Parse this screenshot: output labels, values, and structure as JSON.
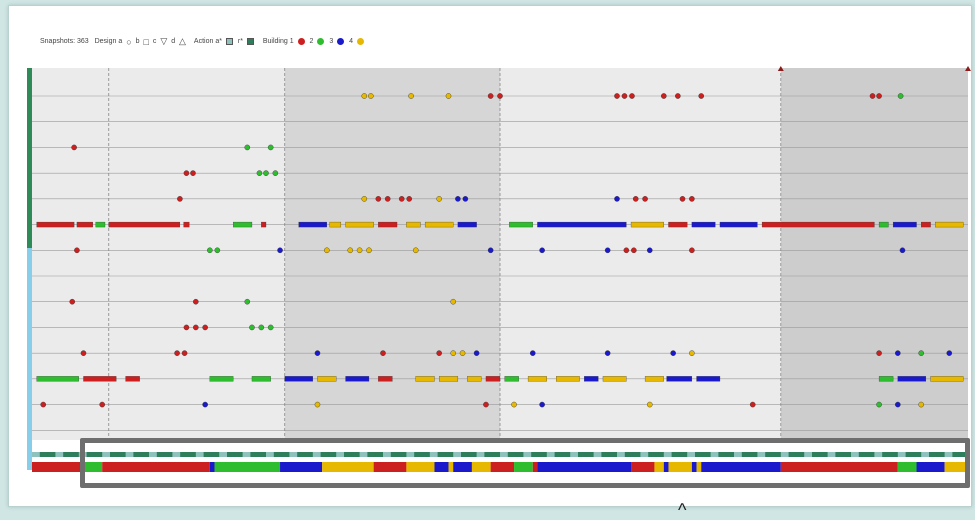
{
  "legend": {
    "snapshots_label": "Snapshots: 363",
    "design_label": "Design",
    "design_items": [
      "a",
      "b",
      "c",
      "d"
    ],
    "design_shapes": [
      "○",
      "□",
      "▽",
      "△"
    ],
    "action_label": "Action",
    "action_items": [
      "a*",
      "r*"
    ],
    "action_colors": [
      "#8fc1bd",
      "#2e7d5b"
    ],
    "building_label": "Building",
    "building_items": [
      "1",
      "2",
      "3",
      "4"
    ],
    "building_colors": [
      "#cc1f1f",
      "#2ebd2e",
      "#1a1acc",
      "#e6b800"
    ]
  },
  "colors": {
    "bg_white": "#ffffff",
    "band_light": "#ebebeb",
    "band_mid": "#d6d6d6",
    "band_dark": "#cdcdcd",
    "row_line": "#9a9a9a",
    "left_green": "#2e8b57",
    "left_blue": "#87ceeb"
  },
  "chart_data": {
    "type": "scatter",
    "title": "",
    "xlabel": "",
    "ylabel": "",
    "xlim": [
      0,
      100
    ],
    "rows": 14,
    "markers": [
      {
        "row": 0,
        "x": [
          35.5,
          36.2
        ],
        "c": "4"
      },
      {
        "row": 0,
        "x": [
          40.5
        ],
        "c": "4"
      },
      {
        "row": 0,
        "x": [
          44.5
        ],
        "c": "4"
      },
      {
        "row": 0,
        "x": [
          49.0,
          50.0
        ],
        "c": "1"
      },
      {
        "row": 0,
        "x": [
          62.5,
          63.3,
          64.1
        ],
        "c": "1"
      },
      {
        "row": 0,
        "x": [
          67.5,
          69.0,
          71.5
        ],
        "c": "1"
      },
      {
        "row": 0,
        "x": [
          89.8,
          90.5
        ],
        "c": "1"
      },
      {
        "row": 0,
        "x": [
          92.8
        ],
        "c": "2"
      },
      {
        "row": 2,
        "x": [
          4.5
        ],
        "c": "1"
      },
      {
        "row": 2,
        "x": [
          23.0
        ],
        "c": "2"
      },
      {
        "row": 2,
        "x": [
          25.5
        ],
        "c": "2"
      },
      {
        "row": 3,
        "x": [
          16.5,
          17.2
        ],
        "c": "1"
      },
      {
        "row": 3,
        "x": [
          24.3,
          25.0
        ],
        "c": "2"
      },
      {
        "row": 3,
        "x": [
          26.0
        ],
        "c": "2"
      },
      {
        "row": 4,
        "x": [
          15.8
        ],
        "c": "1"
      },
      {
        "row": 4,
        "x": [
          35.5
        ],
        "c": "4"
      },
      {
        "row": 4,
        "x": [
          37.0,
          38.0
        ],
        "c": "1"
      },
      {
        "row": 4,
        "x": [
          39.5,
          40.3
        ],
        "c": "1"
      },
      {
        "row": 4,
        "x": [
          43.5
        ],
        "c": "4"
      },
      {
        "row": 4,
        "x": [
          45.5,
          46.3
        ],
        "c": "3"
      },
      {
        "row": 4,
        "x": [
          62.5
        ],
        "c": "3"
      },
      {
        "row": 4,
        "x": [
          64.5,
          65.5
        ],
        "c": "1"
      },
      {
        "row": 4,
        "x": [
          69.5,
          70.5
        ],
        "c": "1"
      },
      {
        "row": 6,
        "x": [
          4.8
        ],
        "c": "1"
      },
      {
        "row": 6,
        "x": [
          19.0,
          19.8
        ],
        "c": "2"
      },
      {
        "row": 6,
        "x": [
          26.5
        ],
        "c": "3"
      },
      {
        "row": 6,
        "x": [
          31.5
        ],
        "c": "4"
      },
      {
        "row": 6,
        "x": [
          34.0,
          35.0,
          36.0
        ],
        "c": "4"
      },
      {
        "row": 6,
        "x": [
          41.0
        ],
        "c": "4"
      },
      {
        "row": 6,
        "x": [
          49.0
        ],
        "c": "3"
      },
      {
        "row": 6,
        "x": [
          54.5
        ],
        "c": "3"
      },
      {
        "row": 6,
        "x": [
          61.5
        ],
        "c": "3"
      },
      {
        "row": 6,
        "x": [
          63.5,
          64.3
        ],
        "c": "1"
      },
      {
        "row": 6,
        "x": [
          66.0
        ],
        "c": "3"
      },
      {
        "row": 6,
        "x": [
          70.5
        ],
        "c": "1"
      },
      {
        "row": 6,
        "x": [
          93.0
        ],
        "c": "3"
      },
      {
        "row": 8,
        "x": [
          4.3
        ],
        "c": "1"
      },
      {
        "row": 8,
        "x": [
          17.5
        ],
        "c": "1"
      },
      {
        "row": 8,
        "x": [
          23.0
        ],
        "c": "2"
      },
      {
        "row": 8,
        "x": [
          45.0
        ],
        "c": "4"
      },
      {
        "row": 9,
        "x": [
          16.5,
          17.5,
          18.5
        ],
        "c": "1"
      },
      {
        "row": 9,
        "x": [
          23.5,
          24.5,
          25.5
        ],
        "c": "2"
      },
      {
        "row": 10,
        "x": [
          5.5
        ],
        "c": "1"
      },
      {
        "row": 10,
        "x": [
          15.5,
          16.3
        ],
        "c": "1"
      },
      {
        "row": 10,
        "x": [
          30.5
        ],
        "c": "3"
      },
      {
        "row": 10,
        "x": [
          37.5
        ],
        "c": "1"
      },
      {
        "row": 10,
        "x": [
          43.5
        ],
        "c": "1"
      },
      {
        "row": 10,
        "x": [
          45.0,
          46.0
        ],
        "c": "4"
      },
      {
        "row": 10,
        "x": [
          47.5
        ],
        "c": "3"
      },
      {
        "row": 10,
        "x": [
          53.5
        ],
        "c": "3"
      },
      {
        "row": 10,
        "x": [
          61.5
        ],
        "c": "3"
      },
      {
        "row": 10,
        "x": [
          68.5
        ],
        "c": "3"
      },
      {
        "row": 10,
        "x": [
          70.5
        ],
        "c": "4"
      },
      {
        "row": 10,
        "x": [
          90.5
        ],
        "c": "1"
      },
      {
        "row": 10,
        "x": [
          92.5
        ],
        "c": "3"
      },
      {
        "row": 10,
        "x": [
          95.0
        ],
        "c": "2"
      },
      {
        "row": 10,
        "x": [
          98.0
        ],
        "c": "3"
      },
      {
        "row": 12,
        "x": [
          1.2
        ],
        "c": "1"
      },
      {
        "row": 12,
        "x": [
          7.5
        ],
        "c": "1"
      },
      {
        "row": 12,
        "x": [
          18.5
        ],
        "c": "3"
      },
      {
        "row": 12,
        "x": [
          30.5
        ],
        "c": "4"
      },
      {
        "row": 12,
        "x": [
          48.5
        ],
        "c": "1"
      },
      {
        "row": 12,
        "x": [
          51.5
        ],
        "c": "4"
      },
      {
        "row": 12,
        "x": [
          54.5
        ],
        "c": "3"
      },
      {
        "row": 12,
        "x": [
          66.0
        ],
        "c": "4"
      },
      {
        "row": 12,
        "x": [
          77.0
        ],
        "c": "1"
      },
      {
        "row": 12,
        "x": [
          90.5
        ],
        "c": "2"
      },
      {
        "row": 12,
        "x": [
          92.5
        ],
        "c": "3"
      },
      {
        "row": 12,
        "x": [
          95.0
        ],
        "c": "4"
      }
    ],
    "stripes": [
      {
        "row": 5,
        "segments": [
          {
            "from": 0.5,
            "to": 4.5,
            "c": "1"
          },
          {
            "from": 4.8,
            "to": 6.5,
            "c": "1"
          },
          {
            "from": 6.8,
            "to": 7.8,
            "c": "2"
          },
          {
            "from": 8.2,
            "to": 15.8,
            "c": "1"
          },
          {
            "from": 16.2,
            "to": 16.8,
            "c": "1"
          },
          {
            "from": 21.5,
            "to": 23.5,
            "c": "2"
          },
          {
            "from": 24.5,
            "to": 25.0,
            "c": "1"
          },
          {
            "from": 28.5,
            "to": 31.5,
            "c": "3"
          },
          {
            "from": 31.8,
            "to": 33.0,
            "c": "4"
          },
          {
            "from": 33.5,
            "to": 36.5,
            "c": "4"
          },
          {
            "from": 37.0,
            "to": 39.0,
            "c": "1"
          },
          {
            "from": 40.0,
            "to": 41.5,
            "c": "4"
          },
          {
            "from": 42.0,
            "to": 45.0,
            "c": "4"
          },
          {
            "from": 45.5,
            "to": 47.5,
            "c": "3"
          },
          {
            "from": 51.0,
            "to": 53.5,
            "c": "2"
          },
          {
            "from": 54.0,
            "to": 63.5,
            "c": "3"
          },
          {
            "from": 64.0,
            "to": 67.5,
            "c": "4"
          },
          {
            "from": 68.0,
            "to": 70.0,
            "c": "1"
          },
          {
            "from": 70.5,
            "to": 73.0,
            "c": "3"
          },
          {
            "from": 73.5,
            "to": 77.5,
            "c": "3"
          },
          {
            "from": 78.0,
            "to": 90.0,
            "c": "1"
          },
          {
            "from": 90.5,
            "to": 91.5,
            "c": "2"
          },
          {
            "from": 92.0,
            "to": 94.5,
            "c": "3"
          },
          {
            "from": 95.0,
            "to": 96.0,
            "c": "1"
          },
          {
            "from": 96.5,
            "to": 99.5,
            "c": "4"
          }
        ]
      },
      {
        "row": 11,
        "segments": [
          {
            "from": 0.5,
            "to": 5.0,
            "c": "2"
          },
          {
            "from": 5.5,
            "to": 9.0,
            "c": "1"
          },
          {
            "from": 10.0,
            "to": 11.5,
            "c": "1"
          },
          {
            "from": 19.0,
            "to": 21.5,
            "c": "2"
          },
          {
            "from": 23.5,
            "to": 25.5,
            "c": "2"
          },
          {
            "from": 27.0,
            "to": 30.0,
            "c": "3"
          },
          {
            "from": 30.5,
            "to": 32.5,
            "c": "4"
          },
          {
            "from": 33.5,
            "to": 36.0,
            "c": "3"
          },
          {
            "from": 37.0,
            "to": 38.5,
            "c": "1"
          },
          {
            "from": 41.0,
            "to": 43.0,
            "c": "4"
          },
          {
            "from": 43.5,
            "to": 45.5,
            "c": "4"
          },
          {
            "from": 46.5,
            "to": 48.0,
            "c": "4"
          },
          {
            "from": 48.5,
            "to": 50.0,
            "c": "1"
          },
          {
            "from": 50.5,
            "to": 52.0,
            "c": "2"
          },
          {
            "from": 53.0,
            "to": 55.0,
            "c": "4"
          },
          {
            "from": 56.0,
            "to": 58.5,
            "c": "4"
          },
          {
            "from": 59.0,
            "to": 60.5,
            "c": "3"
          },
          {
            "from": 61.0,
            "to": 63.5,
            "c": "4"
          },
          {
            "from": 65.5,
            "to": 67.5,
            "c": "4"
          },
          {
            "from": 67.8,
            "to": 70.5,
            "c": "3"
          },
          {
            "from": 71.0,
            "to": 73.5,
            "c": "3"
          },
          {
            "from": 90.5,
            "to": 92.0,
            "c": "2"
          },
          {
            "from": 92.5,
            "to": 95.5,
            "c": "3"
          },
          {
            "from": 96.0,
            "to": 99.5,
            "c": "4"
          }
        ]
      }
    ],
    "building_bar": [
      {
        "from": 0,
        "to": 5.5,
        "c": "1"
      },
      {
        "from": 5.5,
        "to": 7.5,
        "c": "2"
      },
      {
        "from": 7.5,
        "to": 19.0,
        "c": "1"
      },
      {
        "from": 19.0,
        "to": 19.5,
        "c": "3"
      },
      {
        "from": 19.5,
        "to": 26.5,
        "c": "2"
      },
      {
        "from": 26.5,
        "to": 31.0,
        "c": "3"
      },
      {
        "from": 31.0,
        "to": 36.5,
        "c": "4"
      },
      {
        "from": 36.5,
        "to": 40.0,
        "c": "1"
      },
      {
        "from": 40.0,
        "to": 43.0,
        "c": "4"
      },
      {
        "from": 43.0,
        "to": 44.5,
        "c": "3"
      },
      {
        "from": 44.5,
        "to": 45.0,
        "c": "4"
      },
      {
        "from": 45.0,
        "to": 47.0,
        "c": "3"
      },
      {
        "from": 47.0,
        "to": 49.0,
        "c": "4"
      },
      {
        "from": 49.0,
        "to": 51.5,
        "c": "1"
      },
      {
        "from": 51.5,
        "to": 53.5,
        "c": "2"
      },
      {
        "from": 53.5,
        "to": 54.0,
        "c": "1"
      },
      {
        "from": 54.0,
        "to": 64.0,
        "c": "3"
      },
      {
        "from": 64.0,
        "to": 66.5,
        "c": "1"
      },
      {
        "from": 66.5,
        "to": 67.5,
        "c": "4"
      },
      {
        "from": 67.5,
        "to": 68.0,
        "c": "3"
      },
      {
        "from": 68.0,
        "to": 70.5,
        "c": "4"
      },
      {
        "from": 70.5,
        "to": 71.0,
        "c": "3"
      },
      {
        "from": 71.0,
        "to": 71.5,
        "c": "4"
      },
      {
        "from": 71.5,
        "to": 80.0,
        "c": "3"
      },
      {
        "from": 80.0,
        "to": 92.5,
        "c": "1"
      },
      {
        "from": 92.5,
        "to": 94.5,
        "c": "2"
      },
      {
        "from": 94.5,
        "to": 97.5,
        "c": "3"
      },
      {
        "from": 97.5,
        "to": 100,
        "c": "4"
      }
    ],
    "phase_boundaries": [
      8.2,
      27.0,
      50.0,
      80.0,
      100.0
    ],
    "top_triangles": [
      80.0,
      100.0
    ]
  }
}
